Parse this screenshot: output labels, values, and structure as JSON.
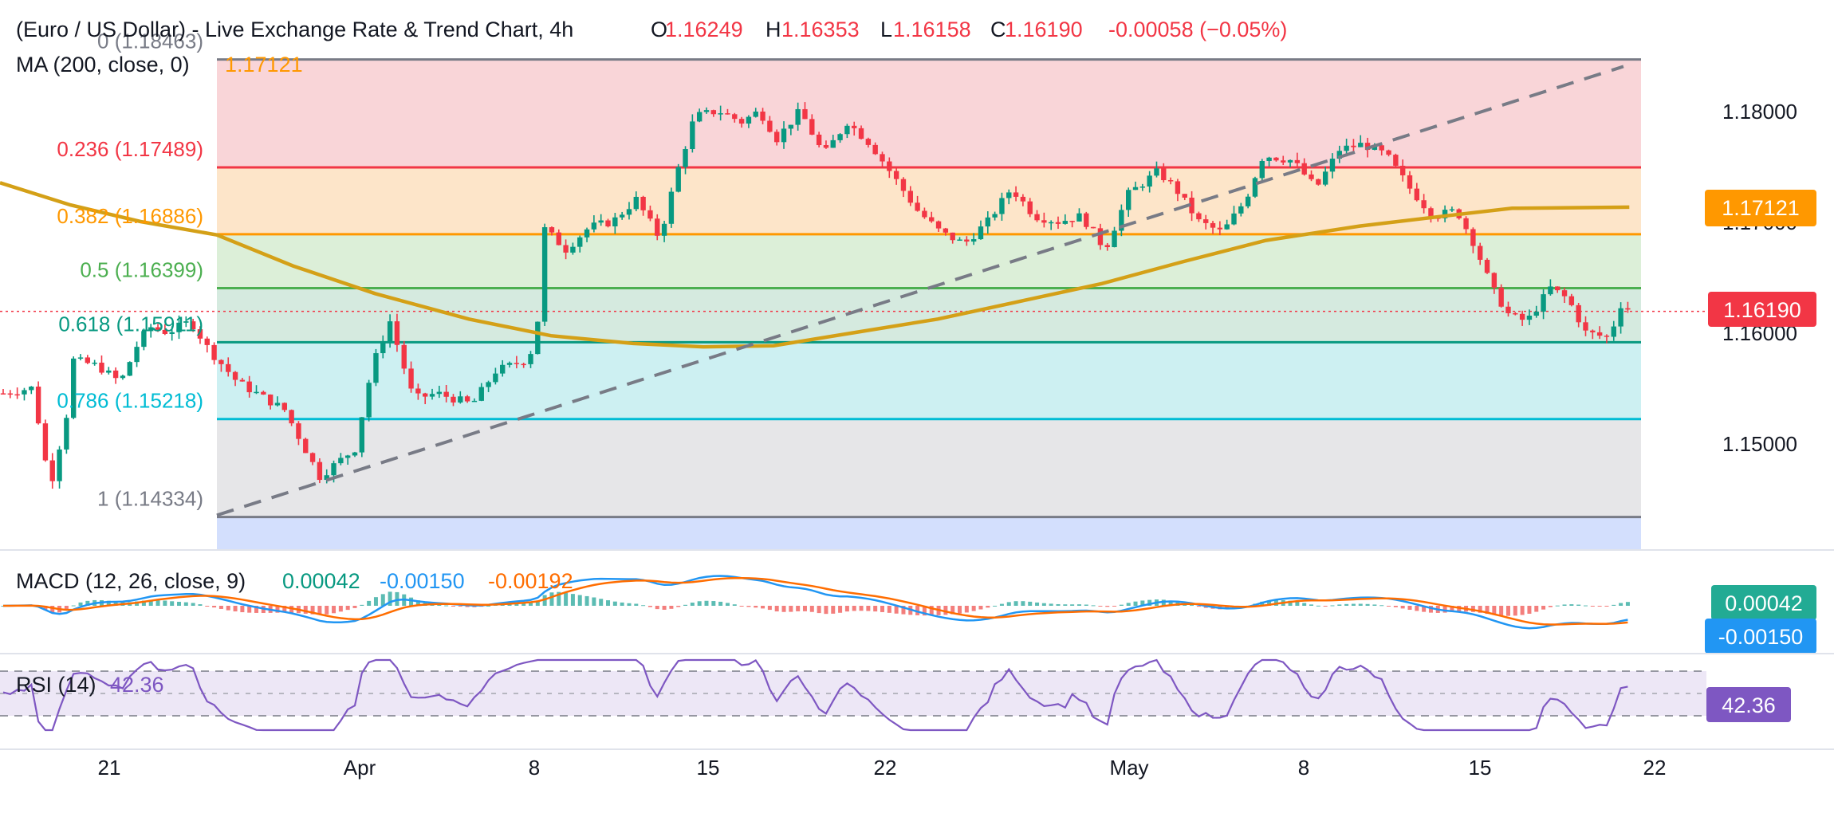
{
  "header": {
    "title": "(Euro / US Dollar) - Live Exchange Rate & Trend Chart, 4h",
    "o_label": "O",
    "o_value": "1.16249",
    "h_label": "H",
    "h_value": "1.16353",
    "l_label": "L",
    "l_value": "1.16158",
    "c_label": "C",
    "c_value": "1.16190",
    "change": "-0.00058 (−0.05%)"
  },
  "ma": {
    "label": "MA (200, close, 0)",
    "value": "1.17121",
    "price_tag": "1.17121"
  },
  "last_price_tag": "1.16190",
  "fibonacci": [
    {
      "label": "0 (1.18463)",
      "price": 1.18463,
      "line": "#787b86",
      "fill": "#f9d5d8",
      "text": "#787b86"
    },
    {
      "label": "0.236 (1.17489)",
      "price": 1.17489,
      "line": "#f23645",
      "fill": "#fde5c9",
      "text": "#f23645"
    },
    {
      "label": "0.382 (1.16886)",
      "price": 1.16886,
      "line": "#ff9800",
      "fill": "#dcefd8",
      "text": "#ff9800"
    },
    {
      "label": "0.5 (1.16399)",
      "price": 1.16399,
      "line": "#4caf50",
      "fill": "#d5eadf",
      "text": "#4caf50"
    },
    {
      "label": "0.618 (1.15911)",
      "price": 1.15911,
      "line": "#089981",
      "fill": "#cdf0f2",
      "text": "#089981"
    },
    {
      "label": "0.786 (1.15218)",
      "price": 1.15218,
      "line": "#00bcd4",
      "fill": "#e6e6e8",
      "text": "#00bcd4"
    },
    {
      "label": "1 (1.14334)",
      "price": 1.14334,
      "line": "#787b86",
      "fill": "#d3dffd",
      "text": "#787b86"
    }
  ],
  "x_axis": [
    "21",
    "Apr",
    "8",
    "15",
    "22",
    "May",
    "8",
    "15",
    "22"
  ],
  "price_axis": [
    "1.18000",
    "1.17000",
    "1.16000",
    "1.15000"
  ],
  "macd": {
    "label": "MACD (12, 26, close, 9)",
    "hist": "0.00042",
    "macd": "-0.00150",
    "signal": "-0.00192",
    "hist_tag": "0.00042",
    "macd_tag": "-0.00150"
  },
  "rsi": {
    "label": "RSI (14)",
    "value": "42.36",
    "tag": "42.36"
  },
  "colors": {
    "up": "#089981",
    "down": "#f23645",
    "ma": "#d4a017",
    "price_line": "#f23645",
    "macd_line": "#2196f3",
    "signal_line": "#ff6d00",
    "rsi_line": "#7e57c2",
    "rsi_band": "#ede7f6",
    "ma_tag": "#ff9800",
    "macd_hist_tag": "#22ab94",
    "macd_tag": "#2196f3",
    "rsi_tag": "#7e57c2"
  },
  "chart_data": {
    "type": "candlestick",
    "instrument": "EUR/USD",
    "timeframe": "4h",
    "y_range": [
      1.1425,
      1.1853
    ],
    "price_ticks": [
      1.18,
      1.17,
      1.16,
      1.15
    ],
    "close_path": [
      [
        0,
        1.1545
      ],
      [
        25,
        1.155
      ],
      [
        40,
        1.146
      ],
      [
        55,
        1.153
      ],
      [
        60,
        1.1575
      ],
      [
        80,
        1.157
      ],
      [
        100,
        1.1555
      ],
      [
        115,
        1.159
      ],
      [
        125,
        1.1605
      ],
      [
        140,
        1.16
      ],
      [
        160,
        1.161
      ],
      [
        175,
        1.1585
      ],
      [
        200,
        1.1555
      ],
      [
        240,
        1.153
      ],
      [
        270,
        1.147
      ],
      [
        300,
        1.1495
      ],
      [
        315,
        1.157
      ],
      [
        330,
        1.161
      ],
      [
        350,
        1.154
      ],
      [
        370,
        1.1545
      ],
      [
        400,
        1.1535
      ],
      [
        420,
        1.1565
      ],
      [
        445,
        1.1575
      ],
      [
        455,
        1.159
      ],
      [
        460,
        1.1695
      ],
      [
        480,
        1.1675
      ],
      [
        500,
        1.1695
      ],
      [
        520,
        1.17
      ],
      [
        540,
        1.172
      ],
      [
        560,
        1.1685
      ],
      [
        575,
        1.1745
      ],
      [
        590,
        1.1795
      ],
      [
        610,
        1.18
      ],
      [
        630,
        1.179
      ],
      [
        645,
        1.18
      ],
      [
        660,
        1.1775
      ],
      [
        680,
        1.18
      ],
      [
        700,
        1.176
      ],
      [
        720,
        1.179
      ],
      [
        740,
        1.177
      ],
      [
        760,
        1.174
      ],
      [
        780,
        1.171
      ],
      [
        800,
        1.169
      ],
      [
        820,
        1.168
      ],
      [
        840,
        1.17
      ],
      [
        860,
        1.173
      ],
      [
        880,
        1.1705
      ],
      [
        900,
        1.17
      ],
      [
        920,
        1.1705
      ],
      [
        940,
        1.1675
      ],
      [
        960,
        1.1725
      ],
      [
        985,
        1.1745
      ],
      [
        1000,
        1.173
      ],
      [
        1020,
        1.17
      ],
      [
        1040,
        1.169
      ],
      [
        1060,
        1.172
      ],
      [
        1075,
        1.176
      ],
      [
        1100,
        1.1755
      ],
      [
        1120,
        1.173
      ],
      [
        1140,
        1.1765
      ],
      [
        1160,
        1.177
      ],
      [
        1180,
        1.176
      ],
      [
        1200,
        1.173
      ],
      [
        1220,
        1.1705
      ],
      [
        1240,
        1.171
      ],
      [
        1255,
        1.168
      ],
      [
        1270,
        1.164
      ],
      [
        1285,
        1.1615
      ],
      [
        1300,
        1.161
      ],
      [
        1320,
        1.164
      ],
      [
        1335,
        1.163
      ],
      [
        1350,
        1.16
      ],
      [
        1370,
        1.1595
      ],
      [
        1380,
        1.1625
      ],
      [
        1390,
        1.1619
      ]
    ],
    "ma200": [
      [
        0,
        1.1735
      ],
      [
        60,
        1.1715
      ],
      [
        120,
        1.17
      ],
      [
        185,
        1.1688
      ],
      [
        250,
        1.166
      ],
      [
        320,
        1.1635
      ],
      [
        400,
        1.1612
      ],
      [
        470,
        1.1597
      ],
      [
        540,
        1.159
      ],
      [
        600,
        1.1587
      ],
      [
        660,
        1.1588
      ],
      [
        730,
        1.16
      ],
      [
        800,
        1.1612
      ],
      [
        870,
        1.1628
      ],
      [
        940,
        1.1644
      ],
      [
        1010,
        1.1664
      ],
      [
        1080,
        1.1683
      ],
      [
        1160,
        1.1696
      ],
      [
        1240,
        1.1706
      ],
      [
        1290,
        1.1712
      ],
      [
        1390,
        1.1713
      ]
    ],
    "trend_line": [
      [
        185,
        1.1435
      ],
      [
        1385,
        1.184
      ]
    ]
  }
}
